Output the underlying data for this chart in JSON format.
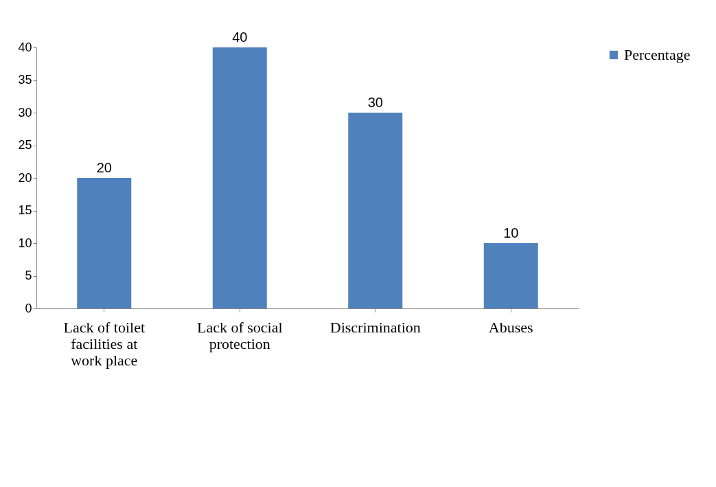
{
  "chart_data": {
    "type": "bar",
    "categories": [
      "Lack of toilet facilities at work place",
      "Lack of social protection",
      "Discrimination",
      "Abuses"
    ],
    "series": [
      {
        "name": "Percentage",
        "color": "#4f81bd",
        "values": [
          20,
          40,
          30,
          10
        ]
      }
    ],
    "ylim": [
      0,
      40
    ],
    "yticks": [
      0,
      5,
      10,
      15,
      20,
      25,
      30,
      35,
      40
    ],
    "grid": false,
    "legend": "right",
    "data_labels": true
  }
}
